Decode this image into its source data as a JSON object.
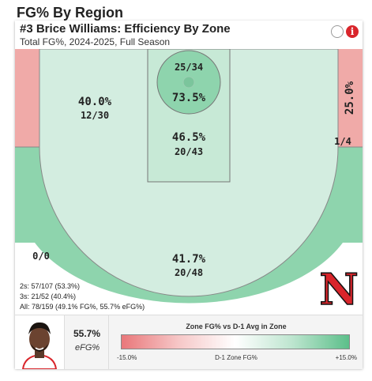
{
  "page_title": "FG% By Region",
  "card": {
    "player_title": "#3 Brice Williams: Efficiency By Zone",
    "subtitle": "Total FG%, 2024-2025, Full Season",
    "icons": [
      "circle-icon",
      "info-icon"
    ],
    "info_glyph": "i"
  },
  "zones": {
    "rim": {
      "pct": "73.5%",
      "frac": "25/34"
    },
    "paint": {
      "pct": "46.5%",
      "frac": "20/43"
    },
    "left_mid": {
      "pct": "40.0%",
      "frac": "12/30"
    },
    "right_corner_mid": {
      "pct": "25.0%",
      "frac": "1/4"
    },
    "top_three": {
      "pct": "41.7%",
      "frac": "20/48"
    },
    "corner_three": {
      "frac": "0/0"
    }
  },
  "stats": {
    "twos": "2s: 57/107 (53.3%)",
    "threes": "3s: 21/52 (40.4%)",
    "all": "All: 78/159 (49.1% FG%, 55.7% eFG%)"
  },
  "footer": {
    "efg_value": "55.7%",
    "efg_label": "eFG%",
    "legend_title": "Zone FG% vs D-1 Avg in Zone",
    "legend_low": "-15.0%",
    "legend_mid": "D-1 Zone FG%",
    "legend_high": "+15.0%"
  },
  "logo_letter": "N",
  "colors": {
    "green_light": "#d3ede0",
    "green_mid": "#9dd9b8",
    "green_dark": "#7fcfa4",
    "red_light": "#f0aaa8",
    "brand_red": "#d9252b"
  }
}
